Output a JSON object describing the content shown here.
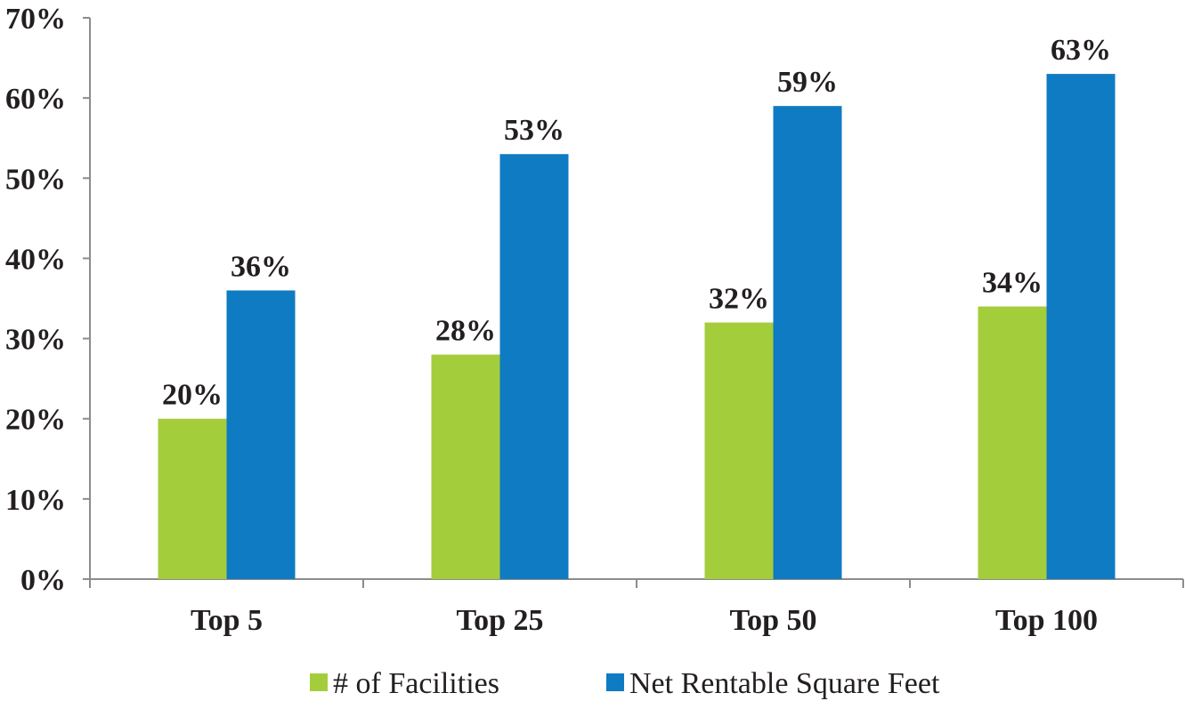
{
  "chart_data": {
    "type": "bar",
    "categories": [
      "Top 5",
      "Top 25",
      "Top 50",
      "Top 100"
    ],
    "series": [
      {
        "name": "# of Facilities",
        "values": [
          20,
          28,
          32,
          34
        ],
        "color": "#a4cd3c"
      },
      {
        "name": "Net Rentable Square Feet",
        "values": [
          36,
          53,
          59,
          63
        ],
        "color": "#0f7bc3"
      }
    ],
    "data_labels": [
      [
        "20%",
        "28%",
        "32%",
        "34%"
      ],
      [
        "36%",
        "53%",
        "59%",
        "63%"
      ]
    ],
    "ylim": [
      0,
      70
    ],
    "yticks": [
      0,
      10,
      20,
      30,
      40,
      50,
      60,
      70
    ],
    "ytick_labels": [
      "0%",
      "10%",
      "20%",
      "30%",
      "40%",
      "50%",
      "60%",
      "70%"
    ],
    "title": "",
    "xlabel": "",
    "ylabel": "",
    "grid": false,
    "legend_position": "bottom"
  }
}
